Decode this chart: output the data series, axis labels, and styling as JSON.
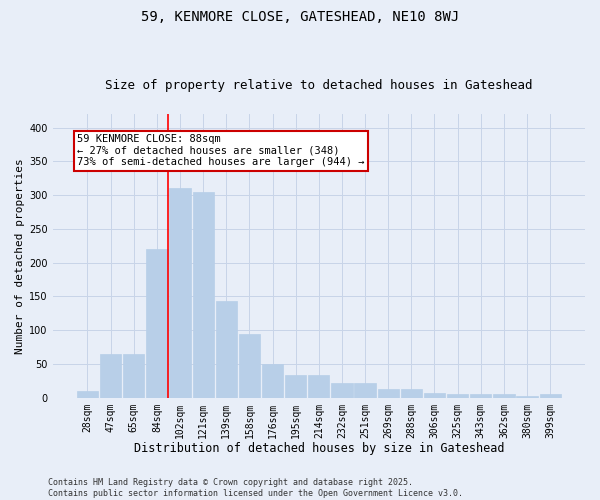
{
  "title1": "59, KENMORE CLOSE, GATESHEAD, NE10 8WJ",
  "title2": "Size of property relative to detached houses in Gateshead",
  "xlabel": "Distribution of detached houses by size in Gateshead",
  "ylabel": "Number of detached properties",
  "categories": [
    "28sqm",
    "47sqm",
    "65sqm",
    "84sqm",
    "102sqm",
    "121sqm",
    "139sqm",
    "158sqm",
    "176sqm",
    "195sqm",
    "214sqm",
    "232sqm",
    "251sqm",
    "269sqm",
    "288sqm",
    "306sqm",
    "325sqm",
    "343sqm",
    "362sqm",
    "380sqm",
    "399sqm"
  ],
  "values": [
    10,
    65,
    65,
    220,
    310,
    305,
    143,
    95,
    50,
    33,
    33,
    22,
    22,
    13,
    13,
    7,
    5,
    5,
    5,
    2,
    5
  ],
  "bar_color": "#b8cfe8",
  "bar_edgecolor": "#b8cfe8",
  "grid_color": "#c8d4e8",
  "bg_color": "#e8eef8",
  "red_line_x": 3.5,
  "annotation_text": "59 KENMORE CLOSE: 88sqm\n← 27% of detached houses are smaller (348)\n73% of semi-detached houses are larger (944) →",
  "annotation_box_color": "#ffffff",
  "annotation_border_color": "#cc0000",
  "ylim": [
    0,
    420
  ],
  "yticks": [
    0,
    50,
    100,
    150,
    200,
    250,
    300,
    350,
    400
  ],
  "footnote": "Contains HM Land Registry data © Crown copyright and database right 2025.\nContains public sector information licensed under the Open Government Licence v3.0.",
  "title_fontsize": 10,
  "subtitle_fontsize": 9,
  "tick_fontsize": 7,
  "xlabel_fontsize": 8.5,
  "ylabel_fontsize": 8,
  "footnote_fontsize": 6,
  "ann_fontsize": 7.5
}
